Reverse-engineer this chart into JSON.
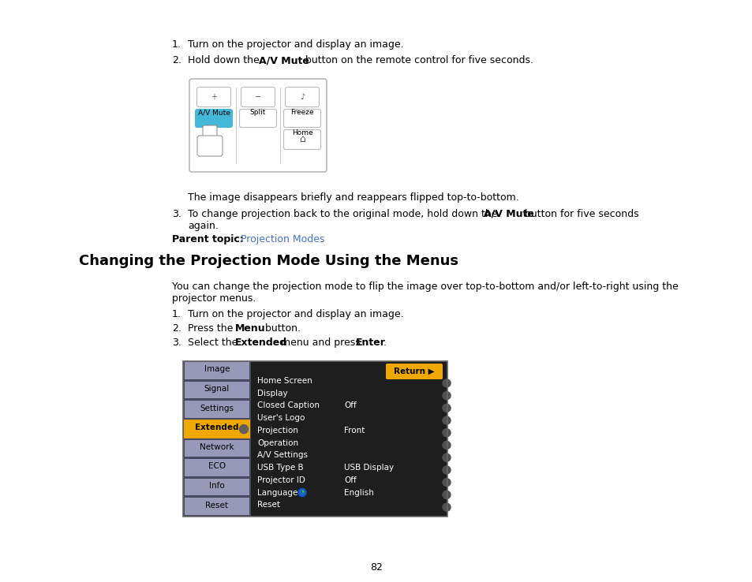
{
  "page_number": "82",
  "bg_color": "#ffffff",
  "text_color": "#000000",
  "link_color": "#4472c4",
  "heading": "Changing the Projection Mode Using the Menus",
  "menu_left_items": [
    "Image",
    "Signal",
    "Settings",
    "Extended",
    "Network",
    "ECO",
    "Info",
    "Reset"
  ],
  "menu_right_items": [
    {
      "label": "Home Screen",
      "value": ""
    },
    {
      "label": "Display",
      "value": ""
    },
    {
      "label": "Closed Caption",
      "value": "Off"
    },
    {
      "label": "User's Logo",
      "value": ""
    },
    {
      "label": "Projection",
      "value": "Front"
    },
    {
      "label": "Operation",
      "value": ""
    },
    {
      "label": "A/V Settings",
      "value": ""
    },
    {
      "label": "USB Type B",
      "value": "USB Display"
    },
    {
      "label": "Projector ID",
      "value": "Off"
    },
    {
      "label": "Language",
      "value": "English",
      "globe": true
    },
    {
      "label": "Reset",
      "value": ""
    }
  ],
  "left_panel_color": "#9898b8",
  "left_selected_color": "#f0a800",
  "right_panel_color": "#282828",
  "return_btn_color": "#f0a800",
  "scallop_color": "#404040"
}
